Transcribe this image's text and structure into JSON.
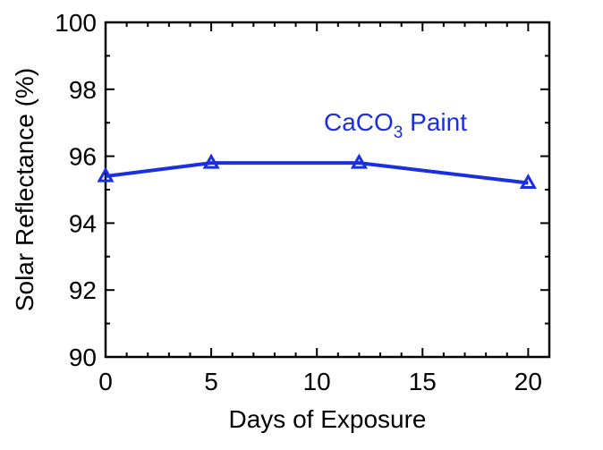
{
  "chart_data": {
    "type": "line",
    "xlabel": "Days of Exposure",
    "ylabel": "Solar Reflectance (%)",
    "xlim": [
      0,
      21
    ],
    "ylim": [
      90,
      100
    ],
    "xticks": [
      0,
      5,
      10,
      15,
      20
    ],
    "yticks": [
      90,
      92,
      94,
      96,
      98,
      100
    ],
    "grid": false,
    "series": [
      {
        "name": "CaCO",
        "name_subscript": "3",
        "name_suffix": " Paint",
        "color": "#1a2fe0",
        "marker": "triangle",
        "x": [
          0,
          5,
          12,
          20
        ],
        "y": [
          95.4,
          95.8,
          95.8,
          95.2
        ]
      }
    ]
  }
}
